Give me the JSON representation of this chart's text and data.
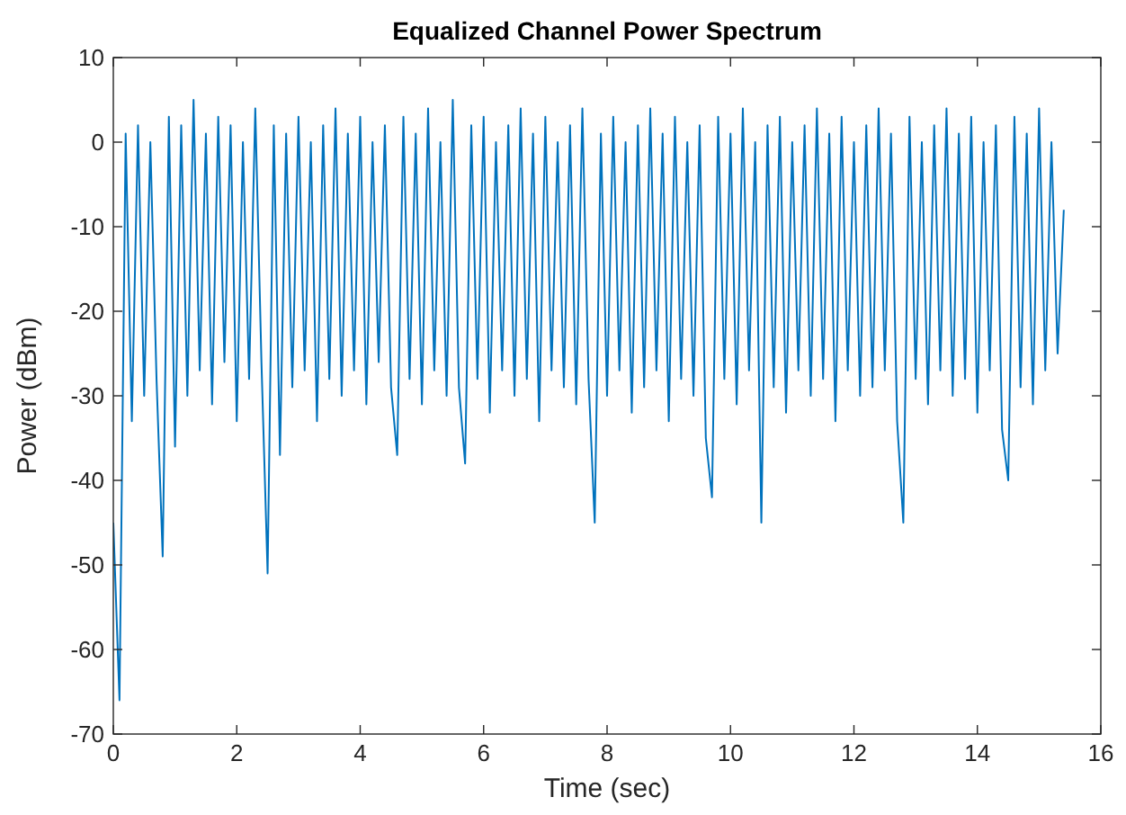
{
  "chart_data": {
    "type": "line",
    "title": "Equalized Channel Power Spectrum",
    "xlabel": "Time (sec)",
    "ylabel": "Power (dBm)",
    "xlim": [
      0,
      16
    ],
    "xticks": [
      0,
      2,
      4,
      6,
      8,
      10,
      12,
      14,
      16
    ],
    "ylim": [
      -70,
      10
    ],
    "yticks": [
      -70,
      -60,
      -50,
      -40,
      -30,
      -20,
      -10,
      0,
      10
    ],
    "grid": false,
    "marker": "none",
    "line_style": "solid",
    "series": [
      {
        "color": "#0072bd",
        "x": [
          0,
          0.1,
          0.2,
          0.3,
          0.4,
          0.5,
          0.6,
          0.7,
          0.8,
          0.9,
          1,
          1.1,
          1.2,
          1.3,
          1.4,
          1.5,
          1.6,
          1.7,
          1.8,
          1.9,
          2,
          2.1,
          2.2,
          2.3,
          2.4,
          2.5,
          2.6,
          2.7,
          2.8,
          2.9,
          3,
          3.1,
          3.2,
          3.3,
          3.4,
          3.5,
          3.6,
          3.7,
          3.8,
          3.9,
          4,
          4.1,
          4.2,
          4.3,
          4.4,
          4.5,
          4.6,
          4.7,
          4.8,
          4.9,
          5,
          5.1,
          5.2,
          5.3,
          5.4,
          5.5,
          5.6,
          5.7,
          5.8,
          5.9,
          6,
          6.1,
          6.2,
          6.3,
          6.4,
          6.5,
          6.6,
          6.7,
          6.8,
          6.9,
          7,
          7.1,
          7.2,
          7.3,
          7.4,
          7.5,
          7.6,
          7.7,
          7.8,
          7.9,
          8,
          8.1,
          8.2,
          8.3,
          8.4,
          8.5,
          8.6,
          8.7,
          8.8,
          8.9,
          9,
          9.1,
          9.2,
          9.3,
          9.4,
          9.5,
          9.6,
          9.7,
          9.8,
          9.9,
          10,
          10.1,
          10.2,
          10.3,
          10.4,
          10.5,
          10.6,
          10.7,
          10.8,
          10.9,
          11,
          11.1,
          11.2,
          11.3,
          11.4,
          11.5,
          11.6,
          11.7,
          11.8,
          11.9,
          12,
          12.1,
          12.2,
          12.3,
          12.4,
          12.5,
          12.6,
          12.7,
          12.8,
          12.9,
          13,
          13.1,
          13.2,
          13.3,
          13.4,
          13.5,
          13.6,
          13.7,
          13.8,
          13.9,
          14,
          14.1,
          14.2,
          14.3,
          14.4,
          14.5,
          14.6,
          14.7,
          14.8,
          14.9,
          15,
          15.1,
          15.2,
          15.3,
          15.4
        ],
        "values": [
          -45,
          -66,
          1,
          -33,
          2,
          -30,
          0,
          -28,
          -49,
          3,
          -36,
          2,
          -30,
          5,
          -27,
          1,
          -31,
          3,
          -26,
          2,
          -33,
          0,
          -28,
          4,
          -26,
          -51,
          2,
          -37,
          1,
          -29,
          3,
          -27,
          0,
          -33,
          2,
          -28,
          4,
          -30,
          1,
          -27,
          3,
          -31,
          0,
          -26,
          2,
          -29,
          -37,
          3,
          -28,
          1,
          -31,
          4,
          -27,
          0,
          -30,
          5,
          -29,
          -38,
          2,
          -28,
          3,
          -32,
          0,
          -27,
          2,
          -30,
          4,
          -28,
          1,
          -33,
          3,
          -27,
          0,
          -29,
          2,
          -31,
          4,
          -28,
          -45,
          1,
          -30,
          3,
          -27,
          0,
          -32,
          2,
          -29,
          4,
          -27,
          1,
          -33,
          3,
          -28,
          0,
          -30,
          2,
          -35,
          -42,
          3,
          -28,
          1,
          -31,
          4,
          -27,
          0,
          -45,
          2,
          -29,
          3,
          -32,
          0,
          -27,
          2,
          -30,
          4,
          -28,
          1,
          -33,
          3,
          -27,
          0,
          -30,
          2,
          -29,
          4,
          -27,
          1,
          -33,
          -45,
          3,
          -28,
          0,
          -31,
          2,
          -27,
          4,
          -30,
          1,
          -28,
          3,
          -32,
          0,
          -27,
          2,
          -34,
          -40,
          3,
          -29,
          1,
          -31,
          4,
          -27,
          0,
          -25,
          -8
        ]
      }
    ]
  }
}
